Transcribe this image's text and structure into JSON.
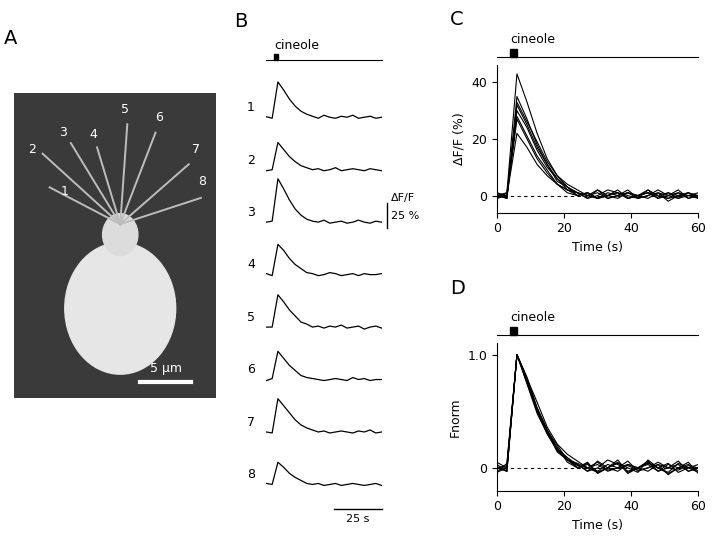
{
  "chart_data": [
    {
      "type": "image",
      "panel_label": "A",
      "labels": [
        "1",
        "2",
        "3",
        "4",
        "5",
        "6",
        "7",
        "8"
      ],
      "scale_bar": {
        "value": 5,
        "label": "5 μm"
      }
    },
    {
      "type": "traces",
      "panel_label": "B",
      "tick_labels": false,
      "stimulus": {
        "label": "cineole",
        "start": 4,
        "end": 6
      },
      "scale_bar_y": {
        "value": 25,
        "title": "ΔF/F",
        "label": "25 %"
      },
      "scale_bar_x": {
        "value": 25,
        "label": "25 s"
      },
      "xlim": [
        0,
        60
      ],
      "ylim": [
        -6,
        46
      ],
      "x": [
        0,
        3,
        6,
        9,
        12,
        15,
        18,
        21,
        24,
        27,
        30,
        33,
        36,
        39,
        42,
        45,
        48,
        51,
        54,
        57,
        60
      ],
      "series": [
        {
          "name": "1",
          "color": "#000000",
          "values": [
            0.5,
            -1,
            35,
            27,
            18,
            11,
            6,
            3,
            1,
            -1,
            2,
            0,
            -1,
            1,
            0,
            2,
            -1,
            0,
            1,
            -1,
            0
          ]
        },
        {
          "name": "2",
          "color": "#000000",
          "values": [
            -1,
            0,
            27,
            20,
            13,
            8,
            4,
            2,
            0,
            1,
            -1,
            0,
            2,
            -1,
            0,
            1,
            0,
            -1,
            1,
            0,
            -1
          ]
        },
        {
          "name": "3",
          "color": "#000000",
          "values": [
            0,
            1,
            43,
            33,
            22,
            13,
            7,
            3,
            1,
            0,
            2,
            -1,
            0,
            1,
            -1,
            0,
            2,
            0,
            -1,
            1,
            0
          ]
        },
        {
          "name": "4",
          "color": "#000000",
          "values": [
            1,
            -1,
            30,
            24,
            16,
            10,
            6,
            2,
            1,
            -1,
            0,
            2,
            1,
            -1,
            0,
            1,
            -1,
            1,
            0,
            0,
            1
          ]
        },
        {
          "name": "5",
          "color": "#000000",
          "values": [
            0,
            0,
            32,
            25,
            17,
            11,
            5,
            3,
            0,
            1,
            -1,
            1,
            0,
            2,
            -1,
            0,
            1,
            -2,
            0,
            1,
            -1
          ]
        },
        {
          "name": "6",
          "color": "#000000",
          "values": [
            -1,
            1,
            28,
            21,
            14,
            9,
            4,
            2,
            1,
            0,
            -1,
            0,
            1,
            0,
            -1,
            2,
            0,
            1,
            -1,
            0,
            0
          ]
        },
        {
          "name": "7",
          "color": "#000000",
          "values": [
            0,
            -1,
            33,
            26,
            19,
            12,
            7,
            4,
            2,
            0,
            1,
            -1,
            0,
            1,
            0,
            -1,
            1,
            0,
            2,
            -1,
            0
          ]
        },
        {
          "name": "8",
          "color": "#000000",
          "values": [
            1,
            0,
            22,
            17,
            11,
            7,
            4,
            1,
            0,
            1,
            -1,
            0,
            1,
            -1,
            0,
            1,
            0,
            -1,
            0,
            1,
            -1
          ]
        }
      ]
    },
    {
      "type": "line",
      "panel_label": "C",
      "stimulus": {
        "label": "cineole",
        "start": 4,
        "end": 6
      },
      "x_label": "Time (s)",
      "y_label": "ΔF/F (%)",
      "xlim": [
        0,
        60
      ],
      "ylim": [
        -6,
        46
      ],
      "xticks": [
        0,
        20,
        40,
        60
      ],
      "yticks": [
        0,
        20,
        40
      ],
      "baseline": 0,
      "x": [
        0,
        3,
        6,
        9,
        12,
        15,
        18,
        21,
        24,
        27,
        30,
        33,
        36,
        39,
        42,
        45,
        48,
        51,
        54,
        57,
        60
      ],
      "series": [
        {
          "color": "#000000",
          "values": [
            0.5,
            -1,
            35,
            27,
            18,
            11,
            6,
            3,
            1,
            -1,
            2,
            0,
            -1,
            1,
            0,
            2,
            -1,
            0,
            1,
            -1,
            0
          ]
        },
        {
          "color": "#000000",
          "values": [
            -1,
            0,
            27,
            20,
            13,
            8,
            4,
            2,
            0,
            1,
            -1,
            0,
            2,
            -1,
            0,
            1,
            0,
            -1,
            1,
            0,
            -1
          ]
        },
        {
          "color": "#000000",
          "values": [
            0,
            1,
            43,
            33,
            22,
            13,
            7,
            3,
            1,
            0,
            2,
            -1,
            0,
            1,
            -1,
            0,
            2,
            0,
            -1,
            1,
            0
          ]
        },
        {
          "color": "#000000",
          "values": [
            1,
            -1,
            30,
            24,
            16,
            10,
            6,
            2,
            1,
            -1,
            0,
            2,
            1,
            -1,
            0,
            1,
            -1,
            1,
            0,
            0,
            1
          ]
        },
        {
          "color": "#000000",
          "values": [
            0,
            0,
            32,
            25,
            17,
            11,
            5,
            3,
            0,
            1,
            -1,
            1,
            0,
            2,
            -1,
            0,
            1,
            -2,
            0,
            1,
            -1
          ]
        },
        {
          "color": "#000000",
          "values": [
            -1,
            1,
            28,
            21,
            14,
            9,
            4,
            2,
            1,
            0,
            -1,
            0,
            1,
            0,
            -1,
            2,
            0,
            1,
            -1,
            0,
            0
          ]
        },
        {
          "color": "#000000",
          "values": [
            0,
            -1,
            33,
            26,
            19,
            12,
            7,
            4,
            2,
            0,
            1,
            -1,
            0,
            1,
            0,
            -1,
            1,
            0,
            2,
            -1,
            0
          ]
        },
        {
          "color": "#000000",
          "values": [
            1,
            0,
            22,
            17,
            11,
            7,
            4,
            1,
            0,
            1,
            -1,
            0,
            1,
            -1,
            0,
            1,
            0,
            -1,
            0,
            1,
            -1
          ]
        }
      ]
    },
    {
      "type": "line",
      "panel_label": "D",
      "stimulus": {
        "label": "cineole",
        "start": 4,
        "end": 6
      },
      "x_label": "Time (s)",
      "y_label": "Fnorm",
      "xlim": [
        0,
        60
      ],
      "ylim": [
        -0.2,
        1.1
      ],
      "xticks": [
        0,
        20,
        40,
        60
      ],
      "yticks": [
        0,
        {
          "value": 1,
          "label": "1.0"
        }
      ],
      "baseline": 0,
      "x": [
        0,
        3,
        6,
        9,
        12,
        15,
        18,
        21,
        24,
        27,
        30,
        33,
        36,
        39,
        42,
        45,
        48,
        51,
        54,
        57,
        60
      ],
      "series": [
        {
          "color": "#000000",
          "values": [
            0.01,
            -0.03,
            1.0,
            0.77,
            0.51,
            0.31,
            0.17,
            0.09,
            0.03,
            -0.03,
            0.06,
            0.0,
            -0.03,
            0.03,
            0.0,
            0.06,
            -0.03,
            0.0,
            0.03,
            -0.03,
            0.0
          ]
        },
        {
          "color": "#000000",
          "values": [
            -0.04,
            0.0,
            1.0,
            0.74,
            0.48,
            0.3,
            0.15,
            0.07,
            0.0,
            0.04,
            -0.04,
            0.0,
            0.07,
            -0.04,
            0.0,
            0.04,
            0.0,
            -0.04,
            0.04,
            0.0,
            -0.04
          ]
        },
        {
          "color": "#000000",
          "values": [
            0.0,
            0.02,
            1.0,
            0.77,
            0.51,
            0.3,
            0.16,
            0.07,
            0.02,
            0.0,
            0.05,
            -0.02,
            0.0,
            0.02,
            -0.02,
            0.0,
            0.05,
            0.0,
            -0.02,
            0.02,
            0.0
          ]
        },
        {
          "color": "#000000",
          "values": [
            0.03,
            -0.03,
            1.0,
            0.8,
            0.53,
            0.33,
            0.2,
            0.07,
            0.03,
            -0.03,
            0.0,
            0.07,
            0.03,
            -0.03,
            0.0,
            0.03,
            -0.03,
            0.03,
            0.0,
            0.0,
            0.03
          ]
        },
        {
          "color": "#000000",
          "values": [
            0.0,
            0.0,
            1.0,
            0.78,
            0.53,
            0.34,
            0.16,
            0.09,
            0.0,
            0.03,
            -0.03,
            0.03,
            0.0,
            0.06,
            -0.03,
            0.0,
            0.03,
            -0.06,
            0.0,
            0.03,
            -0.03
          ]
        },
        {
          "color": "#000000",
          "values": [
            -0.04,
            0.04,
            1.0,
            0.75,
            0.5,
            0.32,
            0.14,
            0.07,
            0.04,
            0.0,
            -0.04,
            0.0,
            0.04,
            0.0,
            -0.04,
            0.07,
            0.0,
            0.04,
            -0.04,
            0.0,
            0.0
          ]
        },
        {
          "color": "#000000",
          "values": [
            0.0,
            -0.03,
            1.0,
            0.79,
            0.58,
            0.36,
            0.21,
            0.12,
            0.06,
            0.0,
            0.03,
            -0.03,
            0.0,
            0.03,
            0.0,
            -0.03,
            0.03,
            0.0,
            0.06,
            -0.03,
            0.0
          ]
        },
        {
          "color": "#000000",
          "values": [
            0.05,
            0.0,
            1.0,
            0.77,
            0.5,
            0.32,
            0.18,
            0.05,
            0.0,
            0.05,
            -0.05,
            0.0,
            0.05,
            -0.05,
            0.0,
            0.05,
            0.0,
            -0.05,
            0.0,
            0.05,
            -0.05
          ]
        }
      ]
    }
  ]
}
